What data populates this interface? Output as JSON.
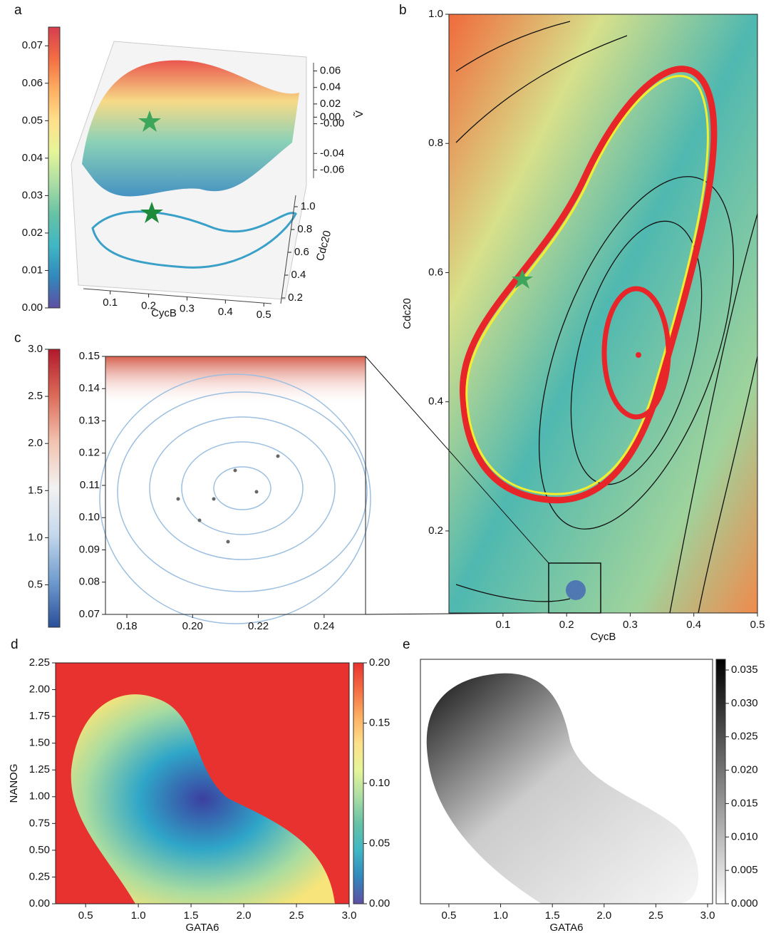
{
  "chart_data": [
    {
      "type": "surface3d",
      "panel_label": "a",
      "xlabel": "CycB",
      "ylabel": "Cdc20",
      "zlabel": "Ṽ",
      "xlim": [
        0.03,
        0.52
      ],
      "xticks": [
        0.1,
        0.2,
        0.3,
        0.4,
        0.5
      ],
      "ylim": [
        0.15,
        1.1
      ],
      "yticks": [
        0.2,
        0.4,
        0.6,
        0.8,
        {
          "value": 1,
          "label": "1.0"
        }
      ],
      "zlim": [
        -0.07,
        0.07
      ],
      "zticks": [
        0.06,
        0.04,
        0.02,
        {
          "value": 0.004,
          "label": "0.00"
        },
        {
          "value": -0.004,
          "label": "-0.00"
        },
        -0.04,
        -0.06
      ],
      "clim": [
        0,
        0.075
      ],
      "cticks": [
        {
          "value": 0,
          "label": "0.00"
        },
        0.01,
        0.02,
        0.03,
        0.04,
        0.05,
        0.06,
        0.07
      ],
      "colors": [
        "#5e4fa2",
        "#3288bd",
        "#3fb7c4",
        "#66c2a5",
        "#abdda4",
        "#e6f598",
        "#fee08b",
        "#fdae61",
        "#f46d43",
        "#d53e4f"
      ]
    },
    {
      "type": "streamplot",
      "panel_label": "b",
      "xlabel": "CycB",
      "ylabel": "Cdc20",
      "xlim": [
        0.015,
        0.5
      ],
      "xticks": [
        0.1,
        0.2,
        0.3,
        0.4,
        0.5
      ],
      "ylim": [
        0.073,
        1.0
      ],
      "yticks": [
        0.2,
        0.4,
        0.6,
        0.8,
        {
          "value": 1,
          "label": "1.0"
        }
      ]
    },
    {
      "type": "streamplot",
      "panel_label": "c",
      "xlim": [
        0.1735,
        0.2526
      ],
      "xticks": [
        0.18,
        {
          "value": 0.2,
          "label": "0.20"
        },
        0.22,
        0.24
      ],
      "ylim": [
        0.07,
        0.15
      ],
      "yticks": [
        0.07,
        0.08,
        0.09,
        {
          "value": 0.1,
          "label": "0.10"
        },
        0.11,
        0.12,
        0.13,
        0.14,
        0.15
      ],
      "clim": [
        0.05,
        3.0
      ],
      "cticks": [
        0.5,
        {
          "value": 1,
          "label": "1.0"
        },
        1.5,
        {
          "value": 2,
          "label": "2.0"
        },
        2.5,
        {
          "value": 3,
          "label": "3.0"
        }
      ],
      "colors": [
        "#2a4f9a",
        "#6f9ccf",
        "#c5d8ec",
        "#f2f2f2",
        "#f3c3b0",
        "#dc6b58",
        "#b2182b"
      ]
    },
    {
      "type": "heatmap",
      "panel_label": "d",
      "xlabel": "GATA6",
      "ylabel": "NANOG",
      "xlim": [
        0.215,
        3.0
      ],
      "xticks": [
        0.5,
        {
          "value": 1,
          "label": "1.0"
        },
        1.5,
        {
          "value": 2,
          "label": "2.0"
        },
        2.5,
        {
          "value": 3,
          "label": "3.0"
        }
      ],
      "ylim": [
        0,
        2.25
      ],
      "yticks": [
        {
          "value": 0,
          "label": "0.00"
        },
        0.25,
        {
          "value": 0.5,
          "label": "0.50"
        },
        0.75,
        {
          "value": 1,
          "label": "1.00"
        },
        1.25,
        {
          "value": 1.5,
          "label": "1.50"
        },
        1.75,
        {
          "value": 2,
          "label": "2.00"
        },
        2.25
      ],
      "clim": [
        0,
        0.2
      ],
      "cticks": [
        {
          "value": 0,
          "label": "0.00"
        },
        0.05,
        {
          "value": 0.1,
          "label": "0.10"
        },
        0.15,
        {
          "value": 0.2,
          "label": "0.20"
        }
      ],
      "colors": [
        "#5e4fa2",
        "#3288bd",
        "#3fb7c4",
        "#66c2a5",
        "#abdda4",
        "#e6f598",
        "#fee08b",
        "#fdae61",
        "#f46d43",
        "#e8322f"
      ]
    },
    {
      "type": "heatmap",
      "panel_label": "e",
      "xlabel": "GATA6",
      "xlim": [
        0.225,
        3.048
      ],
      "xticks": [
        0.5,
        {
          "value": 1,
          "label": "1.0"
        },
        1.5,
        {
          "value": 2,
          "label": "2.0"
        },
        2.5,
        {
          "value": 3,
          "label": "3.0"
        }
      ],
      "clim": [
        0,
        0.0366
      ],
      "cticks": [
        {
          "value": 0,
          "label": "0.000"
        },
        0.005,
        {
          "value": 0.01,
          "label": "0.010"
        },
        0.015,
        {
          "value": 0.02,
          "label": "0.020"
        },
        0.025,
        {
          "value": 0.03,
          "label": "0.030"
        },
        0.035
      ],
      "colors": [
        "#ffffff",
        "#000000"
      ]
    }
  ]
}
